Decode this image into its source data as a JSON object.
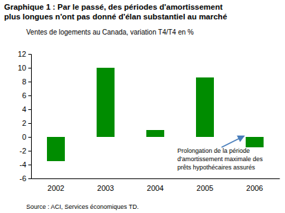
{
  "chart_data": {
    "type": "bar",
    "title": [
      "Graphique 1 : Par le passé, des périodes d'amortissement",
      "plus longues n'ont pas donné d'élan substantiel au marché"
    ],
    "subtitle": "Ventes de logements au Canada, variation T4/T4 en %",
    "categories": [
      "2002",
      "2003",
      "2004",
      "2005",
      "2006"
    ],
    "values": [
      -3.5,
      10,
      1,
      8.6,
      -1.5
    ],
    "color": "#008c00",
    "ylim": [
      -6,
      12
    ],
    "yticks": [
      -6,
      -4,
      -2,
      0,
      2,
      4,
      6,
      8,
      10,
      12
    ],
    "grid": false,
    "annotation": [
      "Prolongation de la période",
      "d'amortissement maximale des",
      "prêts hypothécaires assurés"
    ],
    "source": "Source : ACI, Services économiques TD."
  }
}
